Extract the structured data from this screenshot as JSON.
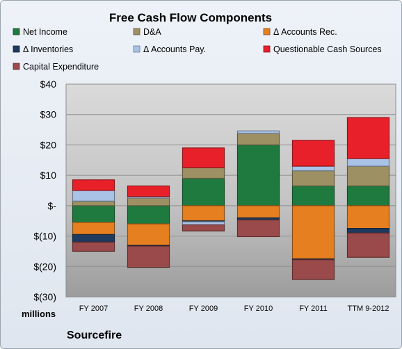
{
  "chart_data": {
    "type": "bar",
    "stacked": true,
    "title": "Free Cash Flow Components",
    "ylabel": "millions",
    "company": "Sourcefire",
    "categories": [
      "FY 2007",
      "FY 2008",
      "FY 2009",
      "FY 2010",
      "FY 2011",
      "TTM 9-2012"
    ],
    "ylim": [
      -30,
      40
    ],
    "yticks": [
      40,
      30,
      20,
      10,
      0,
      -10,
      -20,
      -30
    ],
    "ytick_labels": [
      "$40",
      "$30",
      "$20",
      "$10",
      "$-",
      "$(10)",
      "$(20)",
      "$(30)"
    ],
    "legend_position": "top",
    "grid": true,
    "series": [
      {
        "name": "Net Income",
        "color": "#1f7a3f",
        "values": [
          -5.5,
          -6.0,
          9.0,
          20.0,
          6.5,
          6.5
        ]
      },
      {
        "name": "D&A",
        "color": "#9d9063",
        "values": [
          1.5,
          2.5,
          3.5,
          3.8,
          5.0,
          6.5
        ]
      },
      {
        "name": "Δ Accounts Rec.",
        "color": "#e57f20",
        "values": [
          -4.0,
          -7.0,
          -5.0,
          -4.0,
          -17.5,
          -7.5
        ]
      },
      {
        "name": "Δ Inventories",
        "color": "#1d3a5f",
        "values": [
          -2.5,
          -0.3,
          -0.3,
          -0.7,
          -0.3,
          -1.5
        ]
      },
      {
        "name": "Δ Accounts Pay.",
        "color": "#a9c3e6",
        "values": [
          3.5,
          0.5,
          -1.0,
          0.8,
          1.5,
          2.5
        ]
      },
      {
        "name": "Questionable Cash Sources",
        "color": "#e8202a",
        "values": [
          3.5,
          3.5,
          6.5,
          0.0,
          8.5,
          13.5
        ]
      },
      {
        "name": "Capital Expenditure",
        "color": "#9a4a4a",
        "values": [
          -3.0,
          -7.0,
          -2.0,
          -5.5,
          -6.5,
          -8.0
        ]
      }
    ]
  }
}
